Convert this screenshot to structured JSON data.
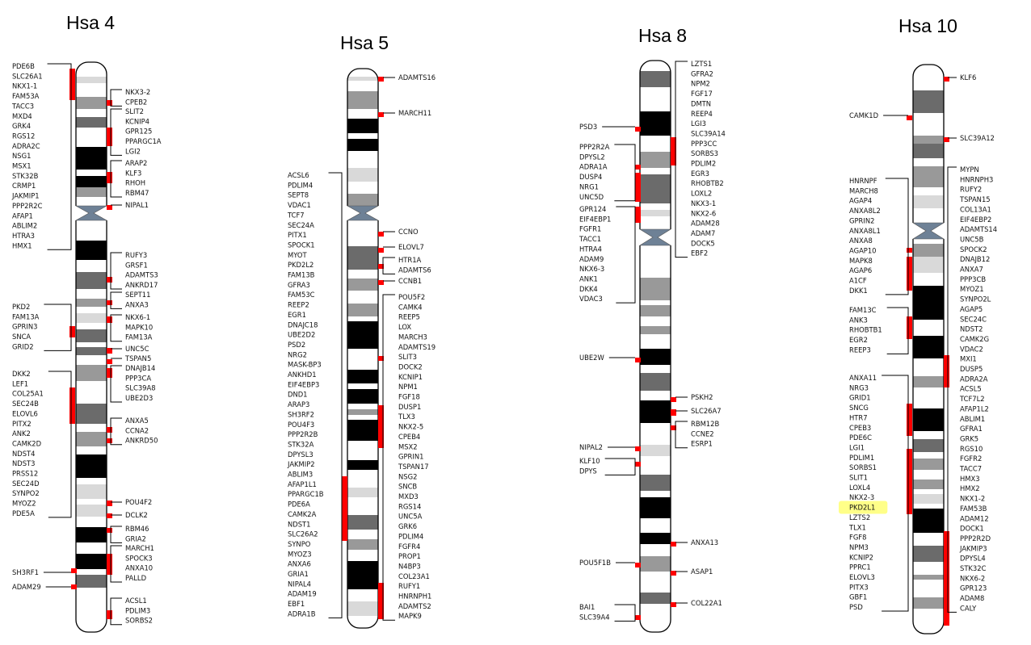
{
  "highlight_color": "#ffff88",
  "mark_color": "#ff0000",
  "band_colors": {
    "white": "#ffffff",
    "black": "#000000",
    "dark": "#6b6b6b",
    "grey": "#999999",
    "light": "#d9d9d9",
    "centromere": "#6e8196"
  },
  "chromosomes": [
    {
      "id": "hsa4",
      "title": "Hsa 4",
      "left_groups": [
        {
          "genes": [
            "PDE6B",
            "SLC26A1",
            "NKX1-1",
            "FAM53A",
            "TACC3",
            "MXD4",
            "GRK4",
            "RGS12",
            "ADRA2C",
            "NSG1",
            "MSX1",
            "STK32B",
            "CRMP1",
            "JAKMIP1",
            "PPP2R2C",
            "AFAP1",
            "ABLIM2",
            "HTRA3",
            "HMX1"
          ]
        },
        {
          "genes": [
            "PKD2",
            "FAM13A",
            "GPRIN3",
            "SNCA",
            "GRID2"
          ]
        },
        {
          "genes": [
            "DKK2",
            "LEF1",
            "COL25A1",
            "SEC24B",
            "ELOVL6",
            "PITX2",
            "ANK2",
            "CAMK2D",
            "NDST4",
            "NDST3",
            "PRSS12",
            "SEC24D",
            "SYNPO2",
            "MYOZ2",
            "PDE5A"
          ]
        },
        {
          "genes": [
            "SH3RF1"
          ]
        },
        {
          "genes": [
            "ADAM29"
          ]
        }
      ],
      "right_groups": [
        {
          "genes": [
            "NKX3-2",
            "CPEB2"
          ]
        },
        {
          "genes": [
            "SLIT2",
            "KCNIP4",
            "GPR125",
            "PPARGC1A",
            "LGI2"
          ]
        },
        {
          "genes": [
            "ARAP2",
            "KLF3",
            "RHOH",
            "RBM47"
          ]
        },
        {
          "genes": [
            "NIPAL1"
          ]
        },
        {
          "genes": [
            "RUFY3",
            "GRSF1",
            "ADAMTS3",
            "ANKRD17"
          ]
        },
        {
          "genes": [
            "SEPT11",
            "ANXA3"
          ]
        },
        {
          "genes": [
            "NKX6-1",
            "MAPK10",
            "FAM13A"
          ]
        },
        {
          "genes": [
            "UNC5C"
          ]
        },
        {
          "genes": [
            "TSPAN5"
          ]
        },
        {
          "genes": [
            "DNAJB14",
            "PPP3CA",
            "SLC39A8",
            "UBE2D3"
          ]
        },
        {
          "genes": [
            "ANXA5",
            "CCNA2",
            "ANKRD50"
          ]
        },
        {
          "genes": [
            "POU4F2"
          ]
        },
        {
          "genes": [
            "DCLK2"
          ]
        },
        {
          "genes": [
            "RBM46",
            "GRIA2"
          ]
        },
        {
          "genes": [
            "MARCH1",
            "SPOCK3",
            "ANXA10",
            "PALLD"
          ]
        },
        {
          "genes": [
            "ACSL1",
            "PDLIM3",
            "SORBS2"
          ]
        }
      ]
    },
    {
      "id": "hsa5",
      "title": "Hsa 5",
      "left_groups": [
        {
          "genes": [
            "ACSL6",
            "PDLIM4",
            "SEPT8",
            "VDAC1",
            "TCF7",
            "SEC24A",
            "PITX1",
            "SPOCK1",
            "MYOT",
            "PKD2L2",
            "FAM13B",
            "GFRA3",
            "FAM53C",
            "REEP2",
            "EGR1",
            "DNAJC18",
            "UBE2D2",
            "PSD2",
            "NRG2",
            "MASK-BP3",
            "ANKHD1",
            "EIF4EBP3",
            "DND1",
            "ARAP3",
            "SH3RF2",
            "POU4F3",
            "PPP2R2B",
            "STK32A",
            "DPYSL3",
            "JAKMIP2",
            "ABLIM3",
            "AFAP1L1",
            "PPARGC1B",
            "PDE6A",
            "CAMK2A",
            "NDST1",
            "SLC26A2",
            "SYNPO",
            "MYOZ3",
            "ANXA6",
            "GRIA1",
            "NIPAL4",
            "ADAM19",
            "EBF1",
            "ADRA1B"
          ]
        }
      ],
      "right_groups": [
        {
          "genes": [
            "ADAMTS16"
          ]
        },
        {
          "genes": [
            "MARCH11"
          ]
        },
        {
          "genes": [
            "CCNO"
          ]
        },
        {
          "genes": [
            "ELOVL7"
          ]
        },
        {
          "genes": [
            "HTR1A",
            "ADAMTS6"
          ]
        },
        {
          "genes": [
            "CCNB1"
          ]
        },
        {
          "genes": [
            "POU5F2",
            "CAMK4",
            "REEP5",
            "LOX",
            "MARCH3",
            "ADAMTS19",
            "SLIT3",
            "DOCK2",
            "KCNIP1",
            "NPM1",
            "FGF18",
            "DUSP1",
            "TLX3",
            "NKX2-5",
            "CPEB4",
            "MSX2",
            "GPRIN1",
            "TSPAN17",
            "NSG2",
            "SNCB",
            "MXD3",
            "RGS14",
            "UNC5A",
            "GRK6",
            "PDLIM4",
            "FGFR4",
            "PROP1",
            "N4BP3",
            "COL23A1",
            "RUFY1",
            "HNRNPH1",
            "ADAMTS2",
            "MAPK9"
          ]
        }
      ]
    },
    {
      "id": "hsa8",
      "title": "Hsa 8",
      "left_groups": [
        {
          "genes": [
            "PSD3"
          ]
        },
        {
          "genes": [
            "PPP2R2A",
            "DPYSL2",
            "ADRA1A",
            "DUSP4",
            "NRG1",
            "UNC5D"
          ]
        },
        {
          "genes": [
            "GPR124",
            "EIF4EBP1",
            "FGFR1",
            "TACC1",
            "HTRA4",
            "ADAM9",
            "NKX6-3",
            "ANK1",
            "DKK4",
            "VDAC3"
          ]
        },
        {
          "genes": [
            "UBE2W"
          ]
        },
        {
          "genes": [
            "NIPAL2"
          ]
        },
        {
          "genes": [
            "KLF10",
            "DPYS"
          ]
        },
        {
          "genes": [
            "POU5F1B"
          ]
        },
        {
          "genes": [
            "BAI1",
            "SLC39A4"
          ]
        }
      ],
      "right_groups": [
        {
          "genes": [
            "LZTS1",
            "GFRA2",
            "NPM2",
            "FGF17",
            "DMTN",
            "REEP4",
            "LGI3",
            "SLC39A14",
            "PPP3CC",
            "SORBS3",
            "PDLIM2",
            "EGR3",
            "RHOBTB2",
            "LOXL2",
            "NKX3-1",
            "NKX2-6",
            "ADAM28",
            "ADAM7",
            "DOCK5",
            "EBF2"
          ]
        },
        {
          "genes": [
            "PSKH2"
          ]
        },
        {
          "genes": [
            "SLC26A7"
          ]
        },
        {
          "genes": [
            "RBM12B",
            "CCNE2",
            "ESRP1"
          ]
        },
        {
          "genes": [
            "ANXA13"
          ]
        },
        {
          "genes": [
            "ASAP1"
          ]
        },
        {
          "genes": [
            "COL22A1"
          ]
        }
      ]
    },
    {
      "id": "hsa10",
      "title": "Hsa 10",
      "left_groups": [
        {
          "genes": [
            "CAMK1D"
          ]
        },
        {
          "genes": [
            "HNRNPF",
            "MARCH8",
            "AGAP4",
            "ANXA8L2",
            "GPRIN2",
            "ANXA8L1",
            "ANXA8",
            "AGAP10",
            "MAPK8",
            "AGAP6",
            "A1CF",
            "DKK1"
          ]
        },
        {
          "genes": [
            "FAM13C",
            "ANK3",
            "RHOBTB1",
            "EGR2",
            "REEP3"
          ]
        },
        {
          "genes": [
            "ANXA11",
            "NRG3",
            "GRID1",
            "SNCG",
            "HTR7",
            "CPEB3",
            "PDE6C",
            "LGI1",
            "PDLIM1",
            "SORBS1",
            "SLIT1",
            "LOXL4",
            "NKX2-3",
            "PKD2L1",
            "LZTS2",
            "TLX1",
            "FGF8",
            "NPM3",
            "KCNIP2",
            "PPRC1",
            "ELOVL3",
            "PITX3",
            "GBF1",
            "PSD"
          ]
        }
      ],
      "right_groups": [
        {
          "genes": [
            "KLF6"
          ]
        },
        {
          "genes": [
            "SLC39A12"
          ]
        },
        {
          "genes": [
            "MYPN",
            "HNRNPH3",
            "RUFY2",
            "TSPAN15",
            "COL13A1",
            "EIF4EBP2",
            "ADAMTS14",
            "UNC5B",
            "SPOCK2",
            "DNAJB12",
            "ANXA7",
            "PPP3CB",
            "MYOZ1",
            "SYNPO2L",
            "AGAP5",
            "SEC24C",
            "NDST2",
            "CAMK2G",
            "VDAC2",
            "MXI1",
            "DUSP5",
            "ADRA2A",
            "ACSL5",
            "TCF7L2",
            "AFAP1L2",
            "ABLIM1",
            "GFRA1",
            "GRK5",
            "RGS10",
            "FGFR2",
            "TACC7",
            "HMX3",
            "HMX2",
            "NKX1-2",
            "FAM53B",
            "ADAM12",
            "DOCK1",
            "PPP2R2D",
            "JAKMIP3",
            "DPYSL4",
            "STK32C",
            "NKX6-2",
            "GPR123",
            "ADAM8",
            "CALY"
          ]
        }
      ]
    }
  ],
  "highlighted_gene": "PKD2L1"
}
